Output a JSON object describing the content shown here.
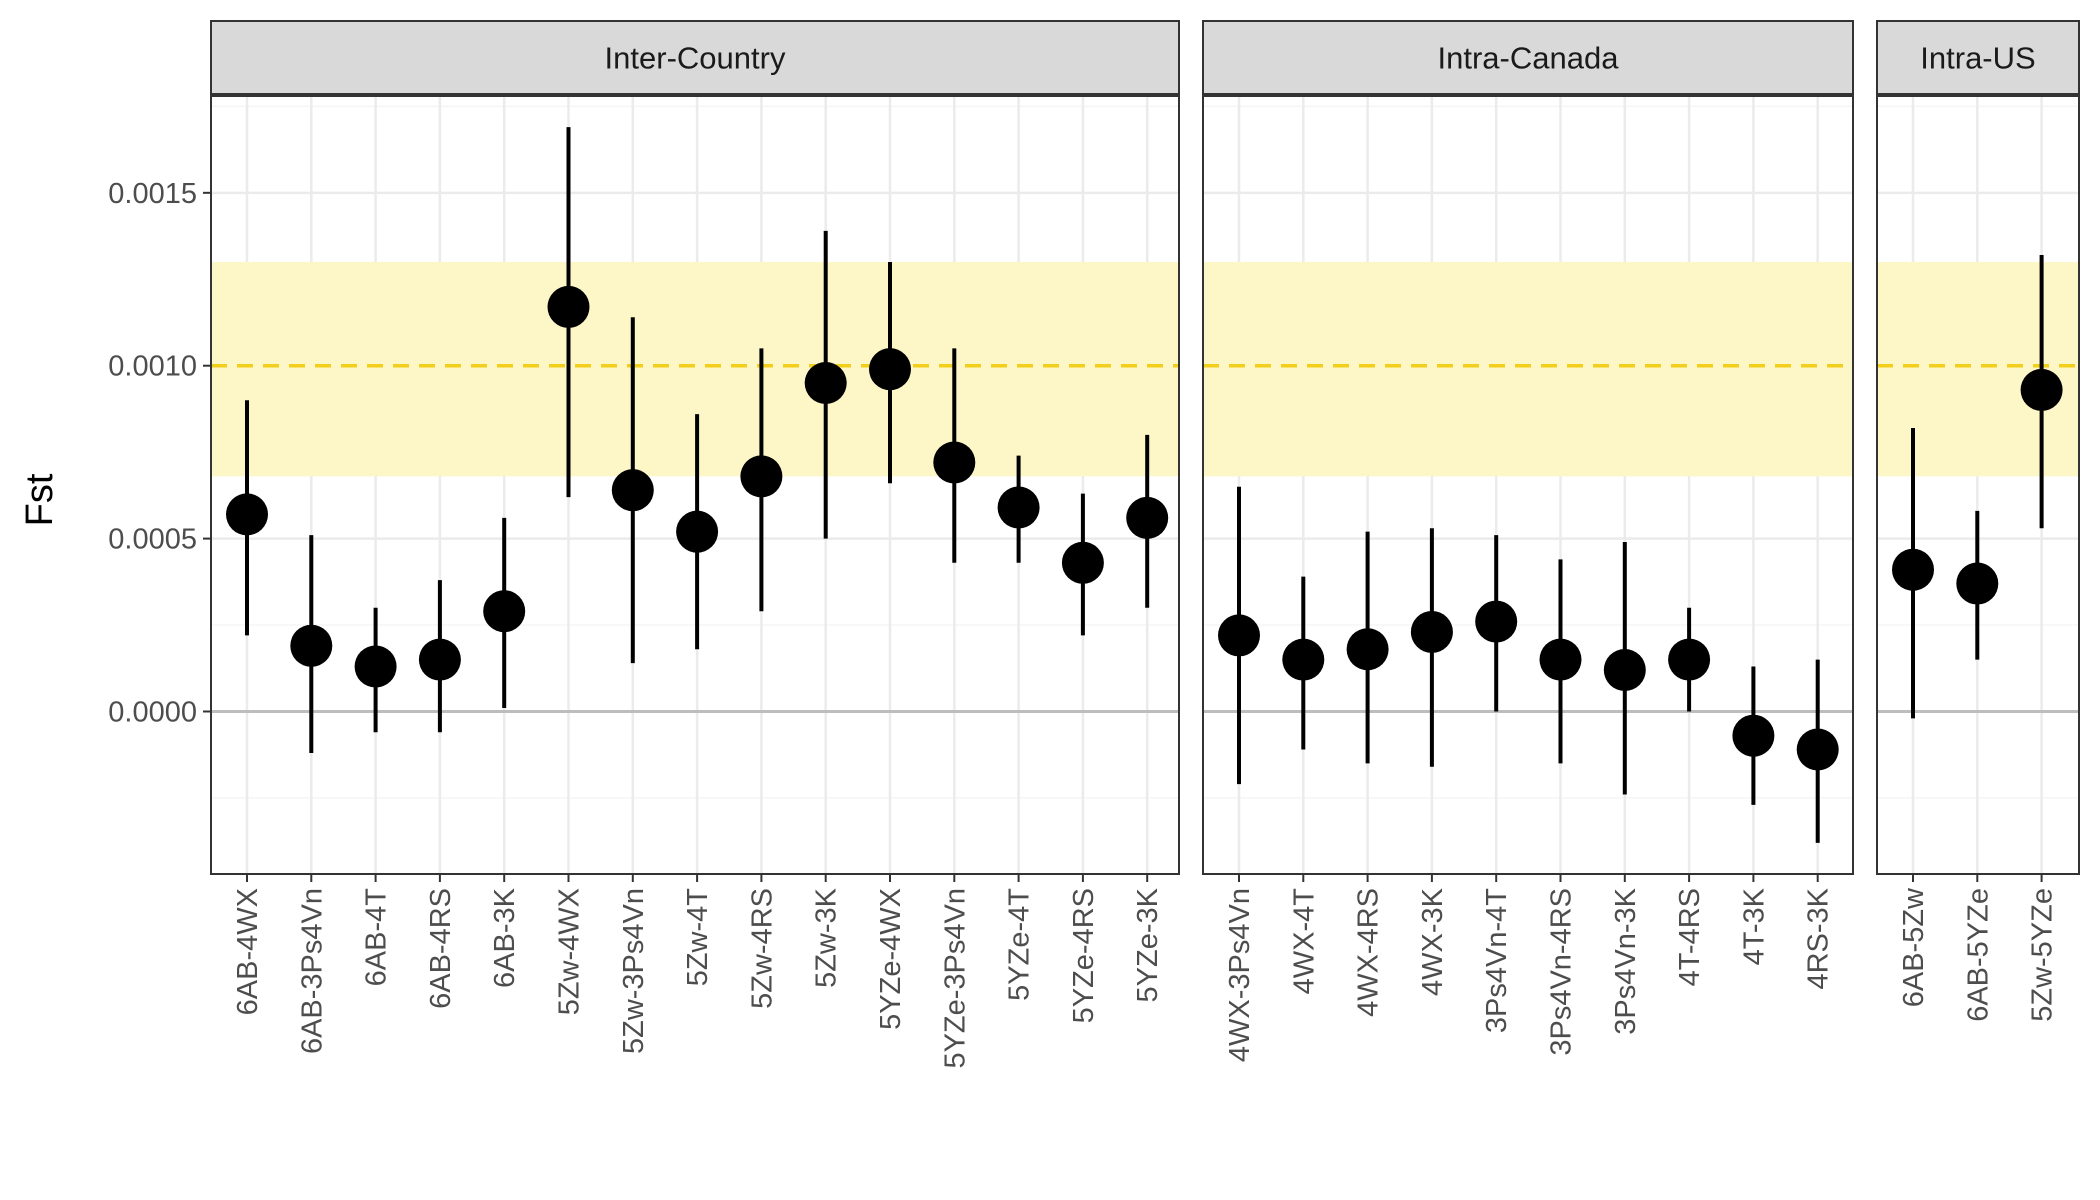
{
  "chart_data": {
    "type": "scatter",
    "subtype": "point-range (estimate with confidence interval), faceted",
    "title": "",
    "xlabel": "",
    "ylabel": "Fst",
    "ylim": [
      -0.00047,
      0.00178
    ],
    "yticks": [
      0.0,
      0.0005,
      0.001,
      0.0015
    ],
    "ytick_labels": [
      "0.0000",
      "0.0005",
      "0.0010",
      "0.0015"
    ],
    "grid": true,
    "zero_line": 0.0,
    "reference_line": 0.001,
    "reference_band": [
      0.00068,
      0.0013
    ],
    "colors": {
      "point": "#000000",
      "errorbar": "#000000",
      "band": "#fdf7c8",
      "reference_line": "#f2cf1a",
      "zero_line": "#bdbdbd",
      "strip_bg": "#d9d9d9",
      "grid_major": "#ebebeb",
      "grid_minor": "#f5f5f5"
    },
    "facets": [
      {
        "label": "Inter-Country",
        "points": [
          {
            "x": "6AB-4WX",
            "y": 0.00057,
            "low": 0.00022,
            "high": 0.0009
          },
          {
            "x": "6AB-3Ps4Vn",
            "y": 0.00019,
            "low": -0.00012,
            "high": 0.00051
          },
          {
            "x": "6AB-4T",
            "y": 0.00013,
            "low": -6e-05,
            "high": 0.0003
          },
          {
            "x": "6AB-4RS",
            "y": 0.00015,
            "low": -6e-05,
            "high": 0.00038
          },
          {
            "x": "6AB-3K",
            "y": 0.00029,
            "low": 1e-05,
            "high": 0.00056
          },
          {
            "x": "5Zw-4WX",
            "y": 0.00117,
            "low": 0.00062,
            "high": 0.00169
          },
          {
            "x": "5Zw-3Ps4Vn",
            "y": 0.00064,
            "low": 0.00014,
            "high": 0.00114
          },
          {
            "x": "5Zw-4T",
            "y": 0.00052,
            "low": 0.00018,
            "high": 0.00086
          },
          {
            "x": "5Zw-4RS",
            "y": 0.00068,
            "low": 0.00029,
            "high": 0.00105
          },
          {
            "x": "5Zw-3K",
            "y": 0.00095,
            "low": 0.0005,
            "high": 0.00139
          },
          {
            "x": "5YZe-4WX",
            "y": 0.00099,
            "low": 0.00066,
            "high": 0.0013
          },
          {
            "x": "5YZe-3Ps4Vn",
            "y": 0.00072,
            "low": 0.00043,
            "high": 0.00105
          },
          {
            "x": "5YZe-4T",
            "y": 0.00059,
            "low": 0.00043,
            "high": 0.00074
          },
          {
            "x": "5YZe-4RS",
            "y": 0.00043,
            "low": 0.00022,
            "high": 0.00063
          },
          {
            "x": "5YZe-3K",
            "y": 0.00056,
            "low": 0.0003,
            "high": 0.0008
          }
        ]
      },
      {
        "label": "Intra-Canada",
        "points": [
          {
            "x": "4WX-3Ps4Vn",
            "y": 0.00022,
            "low": -0.00021,
            "high": 0.00065
          },
          {
            "x": "4WX-4T",
            "y": 0.00015,
            "low": -0.00011,
            "high": 0.00039
          },
          {
            "x": "4WX-4RS",
            "y": 0.00018,
            "low": -0.00015,
            "high": 0.00052
          },
          {
            "x": "4WX-3K",
            "y": 0.00023,
            "low": -0.00016,
            "high": 0.00053
          },
          {
            "x": "3Ps4Vn-4T",
            "y": 0.00026,
            "low": 0.0,
            "high": 0.00051
          },
          {
            "x": "3Ps4Vn-4RS",
            "y": 0.00015,
            "low": -0.00015,
            "high": 0.00044
          },
          {
            "x": "3Ps4Vn-3K",
            "y": 0.00012,
            "low": -0.00024,
            "high": 0.00049
          },
          {
            "x": "4T-4RS",
            "y": 0.00015,
            "low": 0.0,
            "high": 0.0003
          },
          {
            "x": "4T-3K",
            "y": -7e-05,
            "low": -0.00027,
            "high": 0.00013
          },
          {
            "x": "4RS-3K",
            "y": -0.00011,
            "low": -0.00038,
            "high": 0.00015
          }
        ]
      },
      {
        "label": "Intra-US",
        "points": [
          {
            "x": "6AB-5Zw",
            "y": 0.00041,
            "low": -2e-05,
            "high": 0.00082
          },
          {
            "x": "6AB-5YZe",
            "y": 0.00037,
            "low": 0.00015,
            "high": 0.00058
          },
          {
            "x": "5Zw-5YZe",
            "y": 0.00093,
            "low": 0.00053,
            "high": 0.00132
          }
        ]
      }
    ]
  }
}
